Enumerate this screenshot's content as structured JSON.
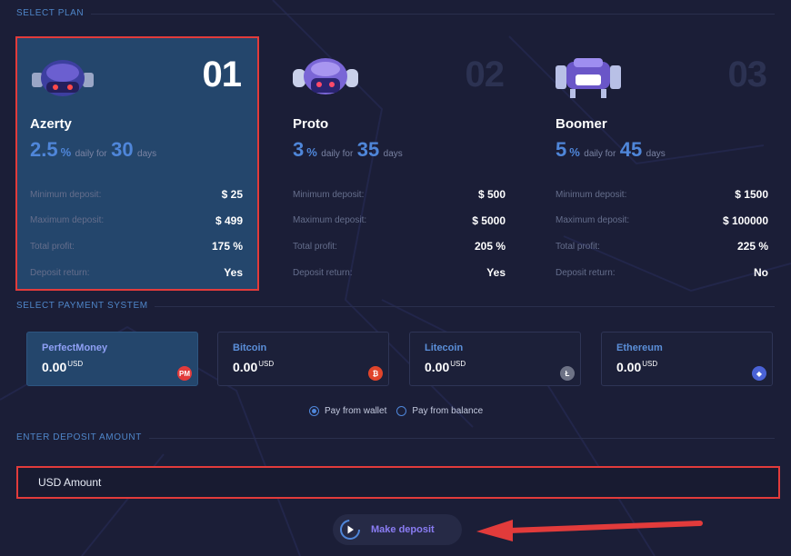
{
  "sections": {
    "select_plan": "SELECT PLAN",
    "select_payment": "SELECT PAYMENT SYSTEM",
    "enter_amount": "ENTER DEPOSIT AMOUNT"
  },
  "plans": [
    {
      "number": "01",
      "name": "Azerty",
      "rate": "2.5",
      "rate_unit": "%",
      "daily_for": "daily for",
      "days": "30",
      "days_label": "days",
      "rows": [
        {
          "label": "Minimum deposit:",
          "value": "$ 25"
        },
        {
          "label": "Maximum deposit:",
          "value": "$ 499"
        },
        {
          "label": "Total profit:",
          "value": "175 %"
        },
        {
          "label": "Deposit return:",
          "value": "Yes"
        }
      ],
      "icon": "robot-azerty-icon",
      "selected": true
    },
    {
      "number": "02",
      "name": "Proto",
      "rate": "3",
      "rate_unit": "%",
      "daily_for": "daily for",
      "days": "35",
      "days_label": "days",
      "rows": [
        {
          "label": "Minimum deposit:",
          "value": "$ 500"
        },
        {
          "label": "Maximum deposit:",
          "value": "$ 5000"
        },
        {
          "label": "Total profit:",
          "value": "205 %"
        },
        {
          "label": "Deposit return:",
          "value": "Yes"
        }
      ],
      "icon": "robot-proto-icon",
      "selected": false
    },
    {
      "number": "03",
      "name": "Boomer",
      "rate": "5",
      "rate_unit": "%",
      "daily_for": "daily for",
      "days": "45",
      "days_label": "days",
      "rows": [
        {
          "label": "Minimum deposit:",
          "value": "$ 1500"
        },
        {
          "label": "Maximum deposit:",
          "value": "$ 100000"
        },
        {
          "label": "Total profit:",
          "value": "225 %"
        },
        {
          "label": "Deposit return:",
          "value": "No"
        }
      ],
      "icon": "robot-boomer-icon",
      "selected": false
    }
  ],
  "payment_systems": [
    {
      "name": "PerfectMoney",
      "amount": "0.00",
      "unit": "USD",
      "icon": "perfectmoney-icon",
      "badge": "PM",
      "color": "#e23b3b",
      "selected": true
    },
    {
      "name": "Bitcoin",
      "amount": "0.00",
      "unit": "USD",
      "icon": "bitcoin-icon",
      "badge": "₿",
      "color": "#e0452b",
      "selected": false
    },
    {
      "name": "Litecoin",
      "amount": "0.00",
      "unit": "USD",
      "icon": "litecoin-icon",
      "badge": "Ł",
      "color": "#6d7285",
      "selected": false
    },
    {
      "name": "Ethereum",
      "amount": "0.00",
      "unit": "USD",
      "icon": "ethereum-icon",
      "badge": "◆",
      "color": "#4a62d6",
      "selected": false
    }
  ],
  "pay_source": {
    "wallet": "Pay from wallet",
    "balance": "Pay from balance",
    "selected": "wallet"
  },
  "amount_input": {
    "placeholder": "USD Amount"
  },
  "deposit_button": {
    "label": "Make deposit",
    "icon": "play-circle-icon"
  },
  "colors": {
    "accent": "#4f86d9",
    "highlight_red": "#e23b3b",
    "selected_bg": "#24466c",
    "button_text": "#8a7cf3"
  }
}
